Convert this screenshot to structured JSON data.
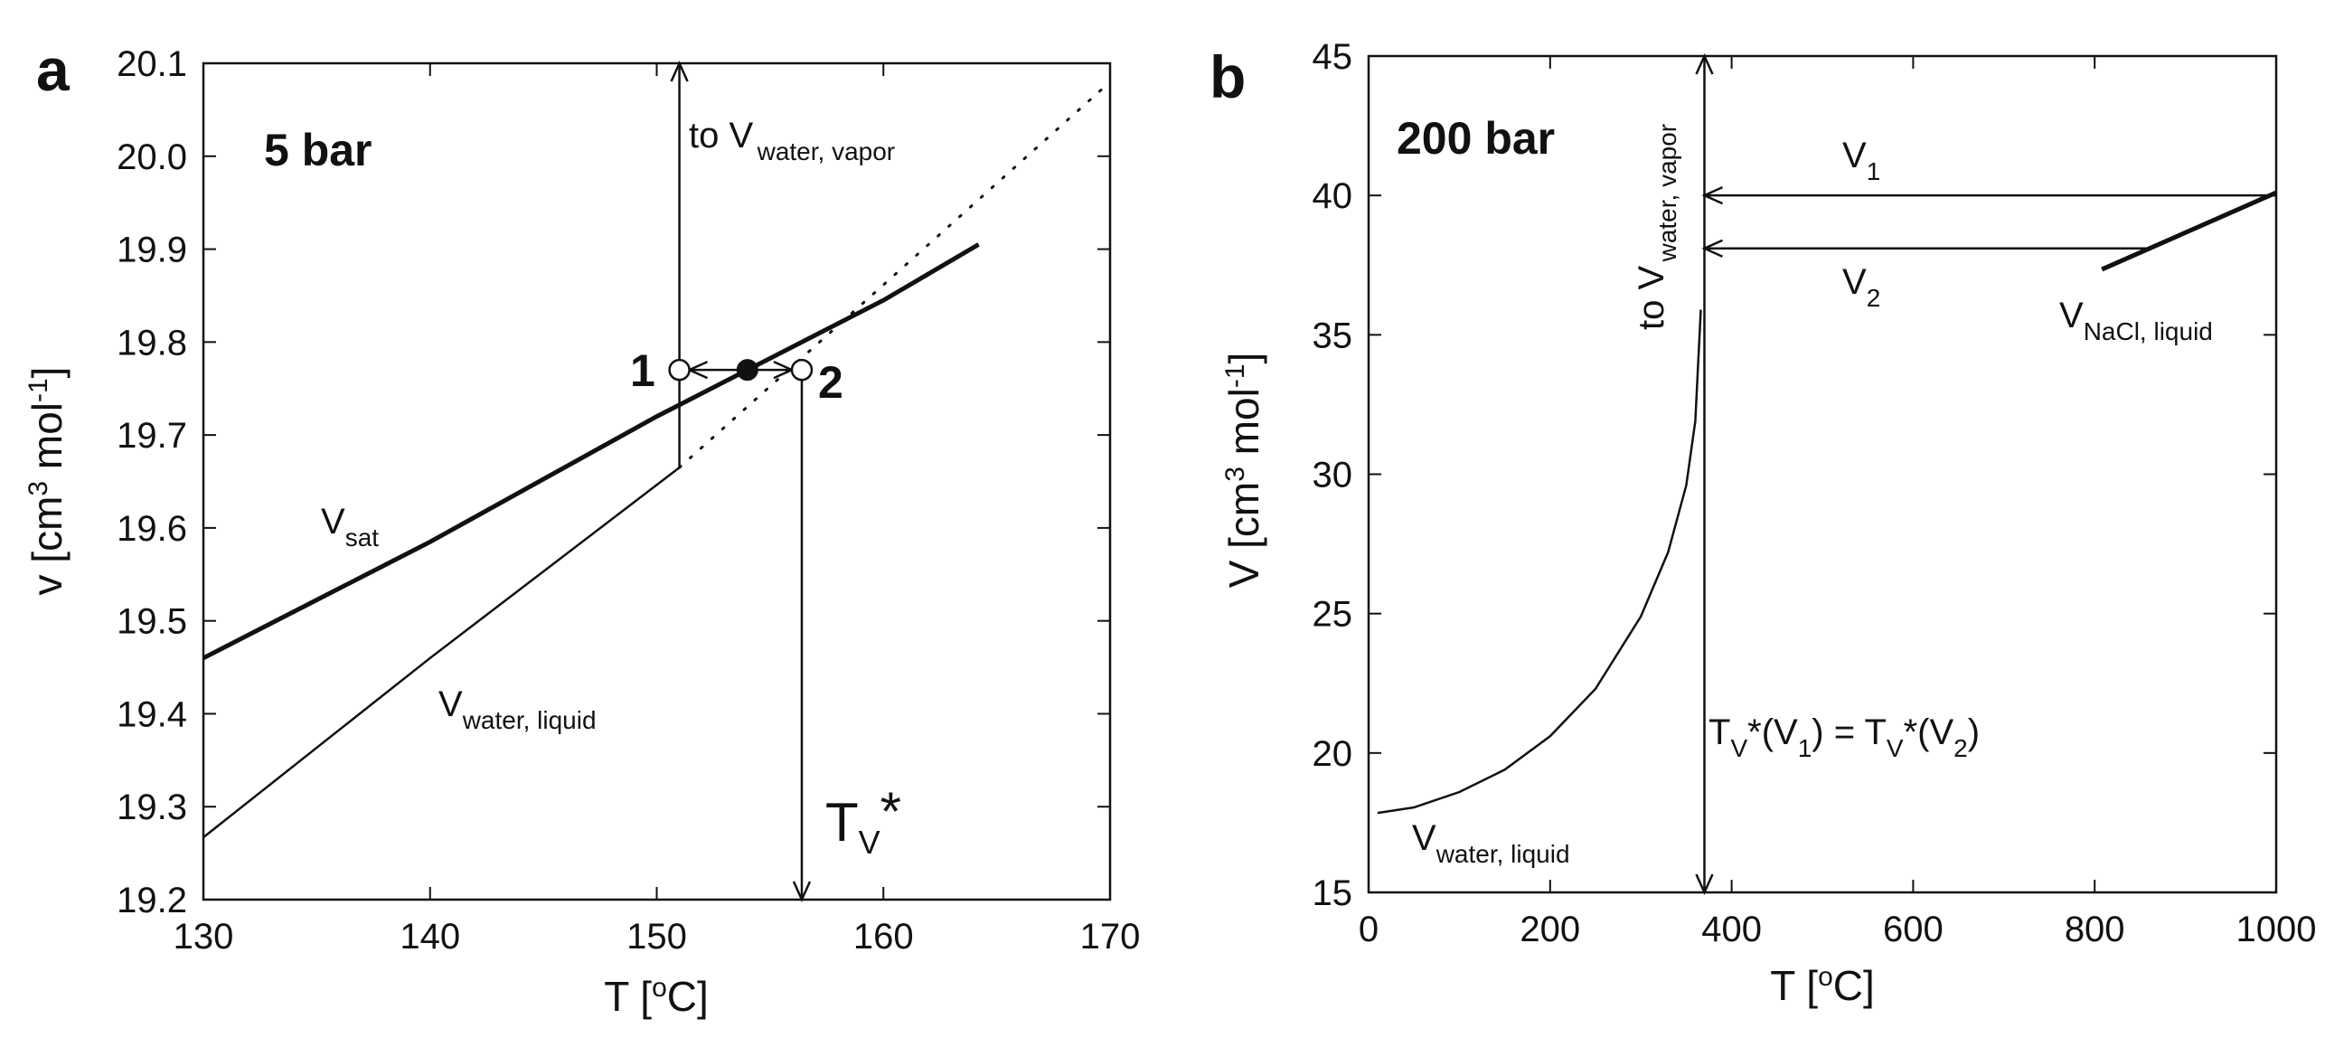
{
  "chart_data": [
    {
      "type": "line",
      "panel_label": "a",
      "title": "5 bar",
      "xlabel": "T [°C]",
      "ylabel": "v [cm³ mol⁻¹]",
      "xlim": [
        130,
        170
      ],
      "ylim": [
        19.2,
        20.1
      ],
      "x_ticks": [
        130,
        140,
        150,
        160,
        170
      ],
      "y_ticks": [
        19.2,
        19.3,
        19.4,
        19.5,
        19.6,
        19.7,
        19.8,
        19.9,
        20.0,
        20.1
      ],
      "x_ticklabels": [
        "130",
        "140",
        "150",
        "160",
        "170"
      ],
      "y_ticklabels": [
        "19.2",
        "19.3",
        "19.4",
        "19.5",
        "19.6",
        "19.7",
        "19.8",
        "19.9",
        "20.0",
        "20.1"
      ],
      "grid": false,
      "series": [
        {
          "label_main": "V",
          "label_sub": "sat",
          "style": "thick",
          "x": [
            130,
            140,
            150,
            154,
            160,
            164.2
          ],
          "y": [
            19.46,
            19.585,
            19.72,
            19.77,
            19.845,
            19.905
          ]
        },
        {
          "label_main": "V",
          "label_sub": "water, liquid",
          "style": "thin",
          "x": [
            130,
            140,
            151
          ],
          "y": [
            19.267,
            19.46,
            19.665
          ]
        },
        {
          "label_main": "",
          "label_sub": "",
          "style": "dotted",
          "x": [
            151,
            170
          ],
          "y": [
            19.665,
            20.08
          ]
        }
      ],
      "points": [
        {
          "name": "1",
          "x": 151,
          "y": 19.77,
          "filled": false
        },
        {
          "name": "",
          "x": 154,
          "y": 19.77,
          "filled": true
        },
        {
          "name": "2",
          "x": 156.4,
          "y": 19.77,
          "filled": false
        }
      ],
      "annotations": {
        "vapor_prefix": "to V",
        "vapor_sub": "water, vapor",
        "tv_main": "T",
        "tv_sub": "V",
        "tv_star": "*"
      }
    },
    {
      "type": "line",
      "panel_label": "b",
      "title": "200 bar",
      "xlabel": "T [°C]",
      "ylabel": "V [cm³ mol⁻¹]",
      "xlim": [
        0,
        1000
      ],
      "ylim": [
        15,
        45
      ],
      "x_ticks": [
        0,
        200,
        400,
        600,
        800,
        1000
      ],
      "y_ticks": [
        15,
        20,
        25,
        30,
        35,
        40,
        45
      ],
      "x_ticklabels": [
        "0",
        "200",
        "400",
        "600",
        "800",
        "1000"
      ],
      "y_ticklabels": [
        "15",
        "20",
        "25",
        "30",
        "35",
        "40",
        "45"
      ],
      "grid": false,
      "series": [
        {
          "label_main": "V",
          "label_sub": "water, liquid",
          "style": "medium",
          "x": [
            10,
            50,
            100,
            150,
            200,
            250,
            300,
            330,
            350,
            360,
            366
          ],
          "y": [
            17.85,
            18.05,
            18.6,
            19.4,
            20.6,
            22.3,
            24.9,
            27.2,
            29.6,
            31.9,
            35.9
          ]
        },
        {
          "label_main": "V",
          "label_sub": "NaCl, liquid",
          "style": "thick",
          "x": [
            808,
            1000
          ],
          "y": [
            37.35,
            40.1
          ]
        }
      ],
      "annotations": {
        "v1_main": "V",
        "v1_sub": "1",
        "v1_value": 40.0,
        "v2_main": "V",
        "v2_sub": "2",
        "v2_value": 38.1,
        "vapor_prefix": "to V",
        "vapor_sub": "water, vapor",
        "tv_equation": [
          "T",
          "V",
          "*(V",
          "1",
          ") = T",
          "V",
          "*(V",
          "2",
          ")"
        ],
        "tv_x": 370
      }
    }
  ]
}
